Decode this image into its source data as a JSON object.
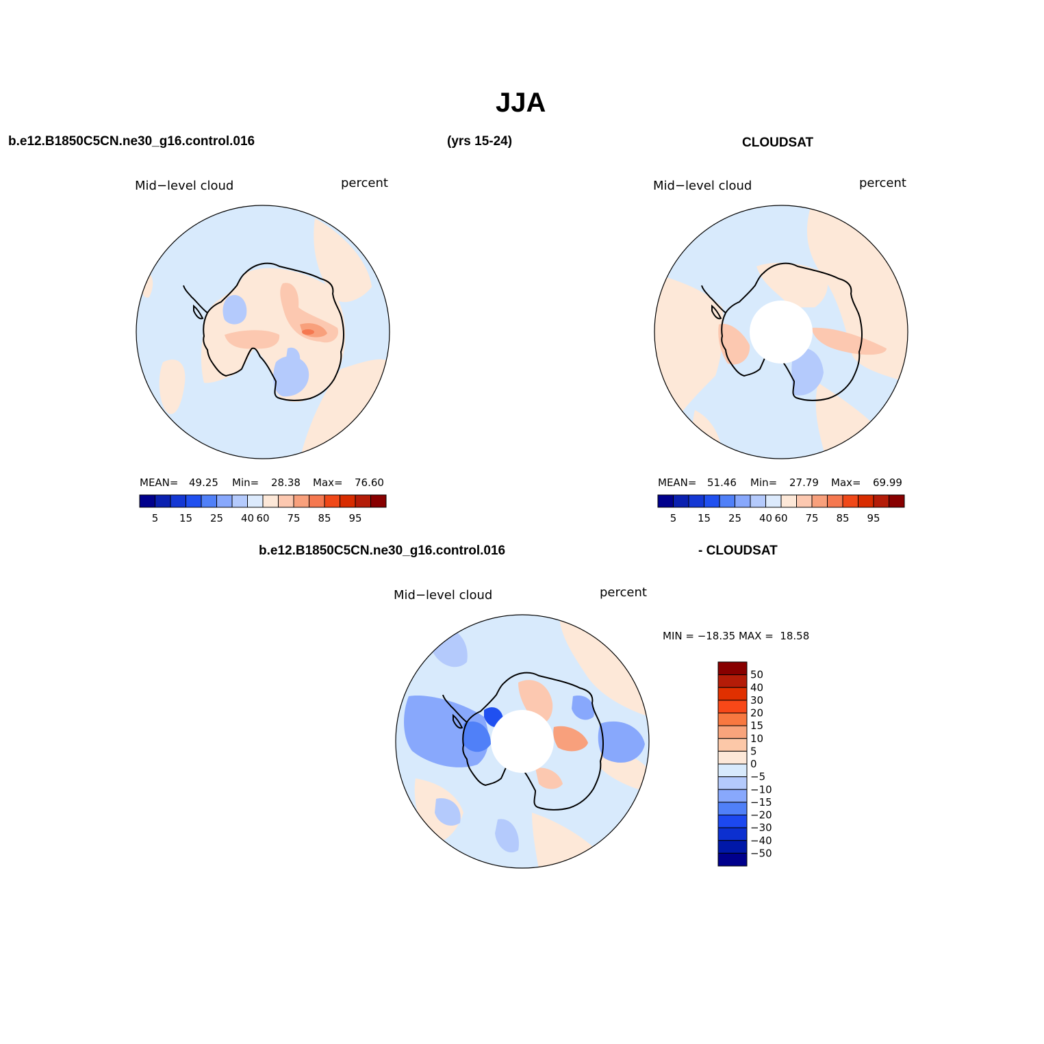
{
  "figure": {
    "title": "JJA",
    "case_name": "b.e12.B1850C5CN.ne30_g16.control.016",
    "years": "(yrs 15-24)",
    "obs_name": "CLOUDSAT",
    "diff_left": "b.e12.B1850C5CN.ne30_g16.control.016",
    "diff_right": "- CLOUDSAT"
  },
  "panels": {
    "model": {
      "variable": "Mid−level cloud",
      "units": "percent",
      "mean_label": "MEAN=",
      "mean": "49.25",
      "min_label": "Min=",
      "min": "28.38",
      "max_label": "Max=",
      "max": "76.60"
    },
    "obs": {
      "variable": "Mid−level cloud",
      "units": "percent",
      "mean_label": "MEAN=",
      "mean": "51.46",
      "min_label": "Min=",
      "min": "27.79",
      "max_label": "Max=",
      "max": "69.99"
    },
    "diff": {
      "variable": "Mid−level cloud",
      "units": "percent",
      "minmax": "MIN = −18.35 MAX =  18.58"
    }
  },
  "colorbars": {
    "abs_colors": [
      "#00008c",
      "#0a20b0",
      "#1438d4",
      "#2050f0",
      "#5080f8",
      "#88a8fc",
      "#b4cafc",
      "#dceafc",
      "#fde8d8",
      "#fcc8b0",
      "#f8a07c",
      "#f57850",
      "#f04818",
      "#d82c00",
      "#b41c08",
      "#880000"
    ],
    "abs_ticks": [
      "5",
      "15",
      "25",
      "40",
      "60",
      "75",
      "85",
      "95"
    ],
    "diff_colors": [
      "#880000",
      "#b41c08",
      "#e03000",
      "#f84818",
      "#f87840",
      "#f8a47c",
      "#fcc8a8",
      "#fde8d8",
      "#d8eafc",
      "#b4cafc",
      "#88a8fc",
      "#5080f8",
      "#1c48f0",
      "#0c30d0",
      "#0018a8",
      "#00008c"
    ],
    "diff_ticks": [
      "50",
      "40",
      "30",
      "20",
      "15",
      "10",
      "5",
      "0",
      "−5",
      "−10",
      "−15",
      "−20",
      "−30",
      "−40",
      "−50"
    ]
  },
  "colors": {
    "light_blue": "#d8eafc",
    "light_orange": "#fde8d8",
    "coast": "#000000"
  }
}
